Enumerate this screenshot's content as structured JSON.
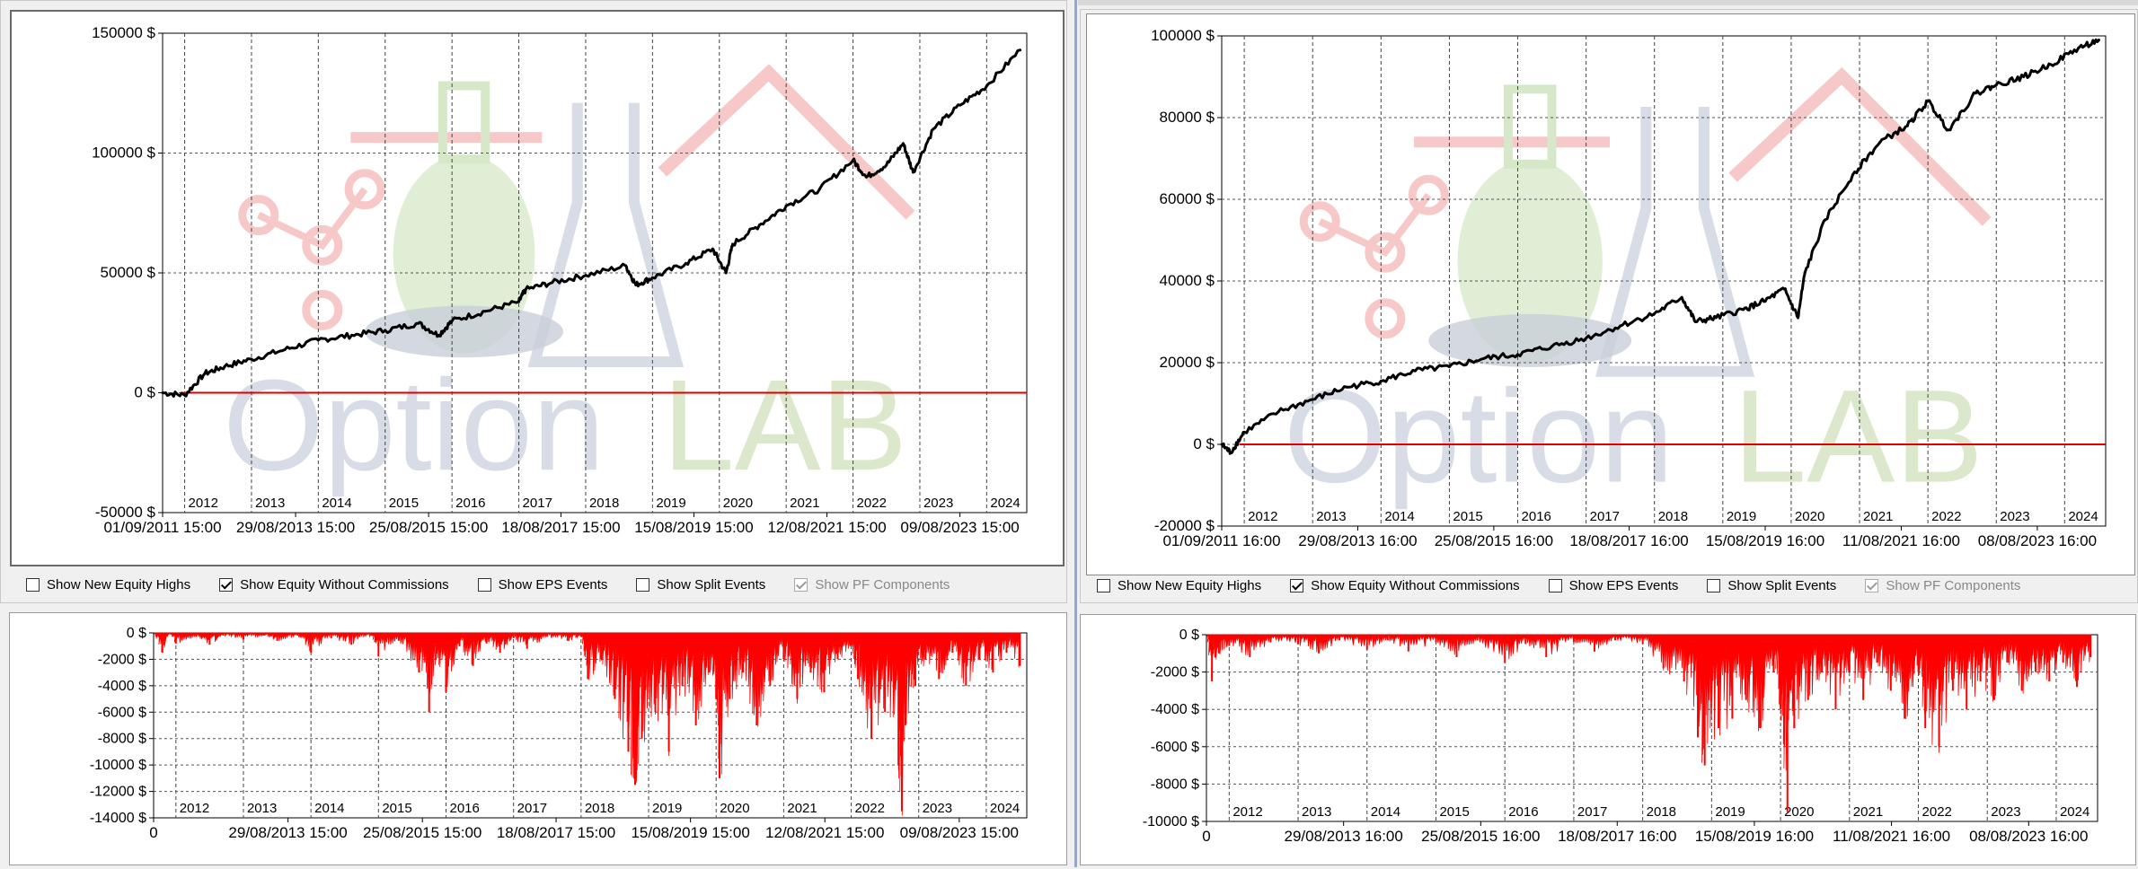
{
  "checkboxes": [
    {
      "label": "Show New Equity Highs",
      "checked": false,
      "disabled": false
    },
    {
      "label": "Show Equity Without Commissions",
      "checked": true,
      "disabled": false
    },
    {
      "label": "Show EPS Events",
      "checked": false,
      "disabled": false
    },
    {
      "label": "Show Split Events",
      "checked": false,
      "disabled": false
    },
    {
      "label": "Show PF Components",
      "checked": true,
      "disabled": true
    }
  ],
  "watermark": {
    "word_part1": "Option",
    "word_part2": "LAB"
  },
  "colors": {
    "equity_line": "#000000",
    "zero_line": "#e00000",
    "drawdown_fill": "#ff0000",
    "grid": "#444444"
  },
  "chart_data": [
    {
      "id": "left-equity",
      "type": "line",
      "ylim": [
        -50000,
        150000
      ],
      "yticks": [
        150000,
        100000,
        50000,
        0,
        -50000
      ],
      "ytick_labels": [
        "150000 $",
        "100000 $",
        "50000 $",
        "0 $",
        "-50000 $"
      ],
      "xtick_labels": [
        "01/09/2011 15:00",
        "29/08/2013 15:00",
        "25/08/2015 15:00",
        "18/08/2017 15:00",
        "15/08/2019 15:00",
        "12/08/2021 15:00",
        "09/08/2023 15:00"
      ],
      "year_labels": [
        "2012",
        "2013",
        "2014",
        "2015",
        "2016",
        "2017",
        "2018",
        "2019",
        "2020",
        "2021",
        "2022",
        "2023",
        "2024"
      ],
      "grid": true,
      "series": [
        {
          "x": [
            2011.67,
            2012.0,
            2012.3,
            2012.6,
            2013.0,
            2013.5,
            2014.0,
            2014.5,
            2015.0,
            2015.5,
            2015.8,
            2016.0,
            2016.5,
            2017.0,
            2017.1,
            2017.5,
            2018.0,
            2018.6,
            2018.75,
            2019.0,
            2019.5,
            2019.9,
            2020.1,
            2020.2,
            2020.6,
            2021.0,
            2021.5,
            2022.0,
            2022.2,
            2022.5,
            2022.75,
            2022.9,
            2023.2,
            2023.6,
            2024.0,
            2024.5
          ],
          "y": [
            0,
            -1000,
            8000,
            11000,
            14000,
            18000,
            22000,
            24000,
            26000,
            29000,
            24000,
            30000,
            34000,
            38000,
            43000,
            46000,
            49000,
            53000,
            45000,
            48000,
            54000,
            60000,
            50000,
            62000,
            70000,
            78000,
            85000,
            97000,
            90000,
            95000,
            104000,
            92000,
            110000,
            120000,
            128000,
            143000
          ]
        }
      ],
      "zero_line": 0
    },
    {
      "id": "right-equity",
      "type": "line",
      "ylim": [
        -20000,
        100000
      ],
      "yticks": [
        100000,
        80000,
        60000,
        40000,
        20000,
        0,
        -20000
      ],
      "ytick_labels": [
        "100000 $",
        "80000 $",
        "60000 $",
        "40000 $",
        "20000 $",
        "0 $",
        "-20000 $"
      ],
      "xtick_labels": [
        "01/09/2011 16:00",
        "29/08/2013 16:00",
        "25/08/2015 16:00",
        "18/08/2017 16:00",
        "15/08/2019 16:00",
        "11/08/2021 16:00",
        "08/08/2023 16:00"
      ],
      "year_labels": [
        "2012",
        "2013",
        "2014",
        "2015",
        "2016",
        "2017",
        "2018",
        "2019",
        "2020",
        "2021",
        "2022",
        "2023",
        "2024"
      ],
      "grid": true,
      "series": [
        {
          "x": [
            2011.67,
            2011.8,
            2012.0,
            2012.5,
            2013.0,
            2013.5,
            2014.0,
            2014.5,
            2015.0,
            2015.5,
            2016.0,
            2016.5,
            2017.0,
            2017.5,
            2018.0,
            2018.4,
            2018.6,
            2018.9,
            2019.3,
            2019.6,
            2019.9,
            2020.1,
            2020.2,
            2020.5,
            2020.9,
            2021.3,
            2021.7,
            2022.0,
            2022.3,
            2022.7,
            2023.0,
            2023.4,
            2023.8,
            2024.2,
            2024.5
          ],
          "y": [
            0,
            -2000,
            3000,
            8000,
            11000,
            14000,
            15500,
            18000,
            19000,
            21000,
            22000,
            24000,
            26000,
            29000,
            32000,
            36000,
            30000,
            31000,
            33000,
            35000,
            38000,
            31000,
            42000,
            55000,
            66000,
            74000,
            78000,
            84000,
            77000,
            86000,
            88000,
            90000,
            93000,
            97000,
            99000
          ]
        }
      ],
      "zero_line": 0
    },
    {
      "id": "left-drawdown",
      "type": "area",
      "ylim": [
        -14000,
        0
      ],
      "yticks": [
        0,
        -2000,
        -4000,
        -6000,
        -8000,
        -10000,
        -12000,
        -14000
      ],
      "ytick_labels": [
        "0 $",
        "-2000 $",
        "-4000 $",
        "-6000 $",
        "-8000 $",
        "-10000 $",
        "-12000 $",
        "-14000 $"
      ],
      "xtick_labels": [
        "0",
        "29/08/2013 15:00",
        "25/08/2015 15:00",
        "18/08/2017 15:00",
        "15/08/2019 15:00",
        "12/08/2021 15:00",
        "09/08/2023 15:00"
      ],
      "year_labels": [
        "2012",
        "2013",
        "2014",
        "2015",
        "2016",
        "2017",
        "2018",
        "2019",
        "2020",
        "2021",
        "2022",
        "2023",
        "2024"
      ],
      "grid": true,
      "series": [
        {
          "x": [
            2011.67,
            2011.8,
            2011.9,
            2012.0,
            2012.3,
            2012.5,
            2012.7,
            2013.0,
            2013.3,
            2013.5,
            2013.8,
            2014.0,
            2014.3,
            2014.6,
            2014.9,
            2015.0,
            2015.3,
            2015.6,
            2015.75,
            2015.85,
            2016.0,
            2016.2,
            2016.4,
            2016.6,
            2016.8,
            2017.0,
            2017.2,
            2017.5,
            2017.8,
            2018.0,
            2018.1,
            2018.3,
            2018.5,
            2018.7,
            2018.8,
            2018.9,
            2019.1,
            2019.3,
            2019.5,
            2019.7,
            2019.9,
            2020.0,
            2020.05,
            2020.2,
            2020.4,
            2020.6,
            2020.8,
            2021.0,
            2021.2,
            2021.4,
            2021.6,
            2021.8,
            2022.0,
            2022.1,
            2022.3,
            2022.5,
            2022.7,
            2022.75,
            2022.8,
            2022.95,
            2023.1,
            2023.3,
            2023.5,
            2023.7,
            2023.9,
            2024.1,
            2024.3,
            2024.5
          ],
          "y": [
            0,
            -1500,
            0,
            -800,
            -300,
            -900,
            -200,
            -500,
            -200,
            -600,
            -200,
            -1500,
            -400,
            -900,
            -200,
            -1800,
            -600,
            -3000,
            -6000,
            -2000,
            -4500,
            -1000,
            -2500,
            -800,
            -1500,
            -400,
            -1200,
            -300,
            -600,
            -300,
            -3500,
            -2000,
            -5000,
            -9000,
            -11500,
            -8000,
            -6000,
            -9000,
            -4000,
            -7000,
            -3000,
            -5000,
            -11000,
            -5000,
            -3000,
            -7000,
            -4000,
            -2000,
            -5000,
            -3000,
            -4500,
            -2000,
            -1000,
            -3500,
            -8000,
            -6000,
            -10000,
            -13500,
            -7000,
            -4000,
            -2000,
            -3500,
            -1500,
            -4000,
            -2000,
            -3000,
            -1500,
            -2500
          ]
        }
      ]
    },
    {
      "id": "right-drawdown",
      "type": "area",
      "ylim": [
        -10000,
        0
      ],
      "yticks": [
        0,
        -2000,
        -4000,
        -6000,
        -8000,
        -10000
      ],
      "ytick_labels": [
        "0 $",
        "-2000 $",
        "-4000 $",
        "-6000 $",
        "-8000 $",
        "-10000 $"
      ],
      "xtick_labels": [
        "0",
        "29/08/2013 16:00",
        "25/08/2015 16:00",
        "18/08/2017 16:00",
        "15/08/2019 16:00",
        "11/08/2021 16:00",
        "08/08/2023 16:00"
      ],
      "year_labels": [
        "2012",
        "2013",
        "2014",
        "2015",
        "2016",
        "2017",
        "2018",
        "2019",
        "2020",
        "2021",
        "2022",
        "2023",
        "2024"
      ],
      "grid": true,
      "series": [
        {
          "x": [
            2011.67,
            2011.75,
            2011.85,
            2012.0,
            2012.3,
            2012.6,
            2013.0,
            2013.3,
            2013.6,
            2014.0,
            2014.3,
            2014.6,
            2015.0,
            2015.3,
            2015.6,
            2016.0,
            2016.3,
            2016.6,
            2017.0,
            2017.3,
            2017.6,
            2018.0,
            2018.3,
            2018.6,
            2018.8,
            2018.9,
            2019.1,
            2019.3,
            2019.5,
            2019.7,
            2019.9,
            2020.0,
            2020.1,
            2020.15,
            2020.2,
            2020.4,
            2020.6,
            2020.8,
            2021.0,
            2021.2,
            2021.4,
            2021.6,
            2021.8,
            2022.0,
            2022.1,
            2022.3,
            2022.5,
            2022.7,
            2022.9,
            2023.1,
            2023.3,
            2023.5,
            2023.7,
            2023.9,
            2024.1,
            2024.3,
            2024.5
          ],
          "y": [
            0,
            -2500,
            -1000,
            -600,
            -1200,
            -400,
            -500,
            -1000,
            -300,
            -800,
            -300,
            -900,
            -400,
            -1200,
            -300,
            -1500,
            -500,
            -1200,
            -400,
            -900,
            -300,
            -500,
            -1800,
            -2500,
            -5500,
            -7000,
            -5000,
            -4500,
            -3500,
            -5000,
            -2000,
            -4000,
            -9500,
            -3000,
            -5000,
            -3500,
            -2000,
            -4000,
            -2000,
            -3500,
            -1500,
            -3000,
            -4500,
            -2000,
            -5000,
            -6000,
            -3000,
            -4000,
            -2500,
            -3500,
            -1500,
            -3000,
            -2000,
            -2500,
            -1500,
            -2800,
            -1200
          ]
        }
      ]
    }
  ]
}
